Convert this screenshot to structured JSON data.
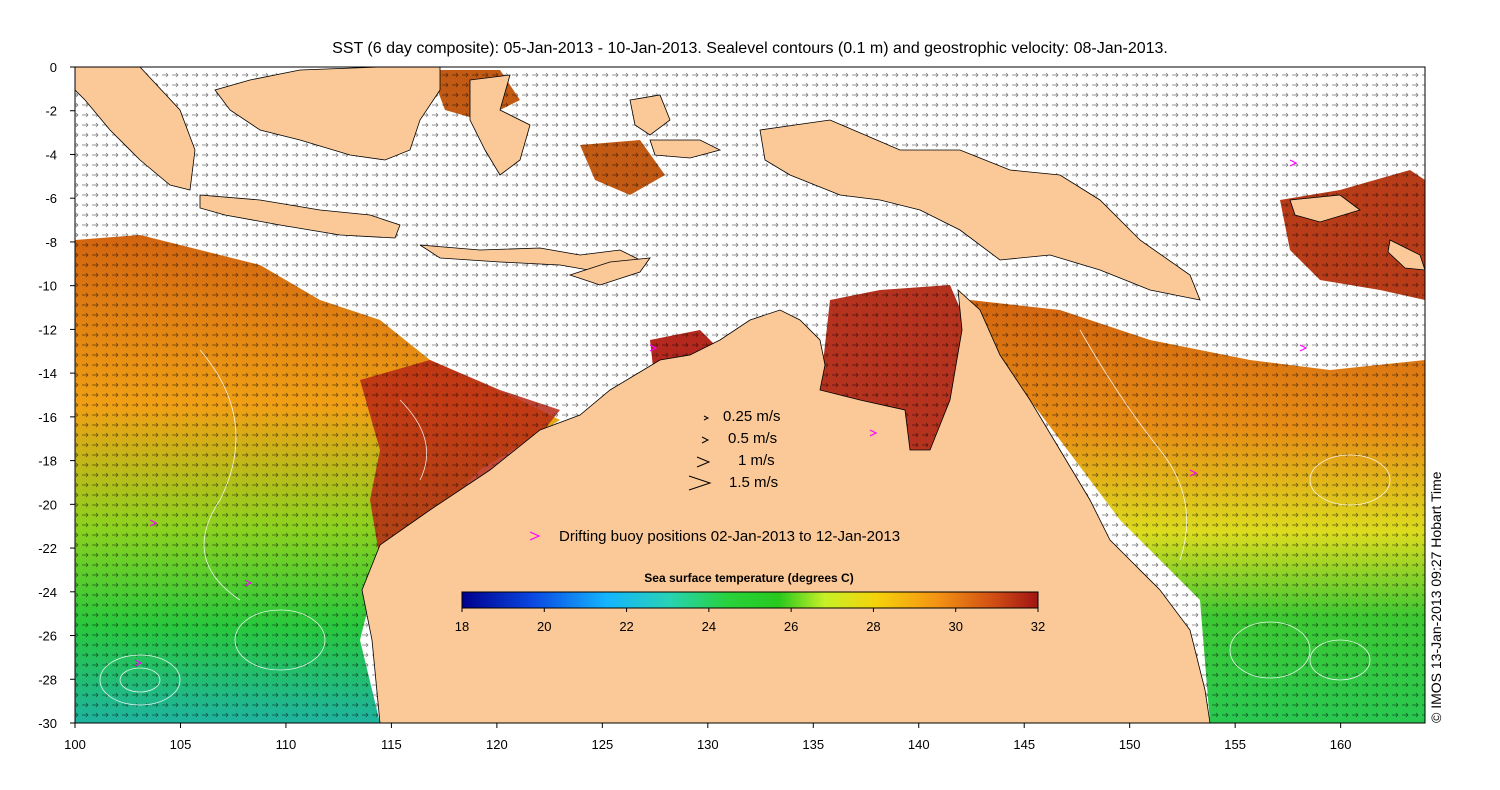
{
  "title": "SST (6 day composite): 05-Jan-2013 - 10-Jan-2013. Sealevel contours (0.1 m) and geostrophic velocity: 08-Jan-2013.",
  "map": {
    "lon_range": [
      100,
      164
    ],
    "lat_range": [
      -30,
      0
    ],
    "x_ticks": [
      "100",
      "105",
      "110",
      "115",
      "120",
      "125",
      "130",
      "135",
      "140",
      "145",
      "150",
      "155",
      "160"
    ],
    "y_ticks": [
      "0",
      "-2",
      "-4",
      "-6",
      "-8",
      "-10",
      "-12",
      "-14",
      "-16",
      "-18",
      "-20",
      "-22",
      "-24",
      "-26",
      "-28",
      "-30"
    ],
    "colors": {
      "land": "#fbc898",
      "cloud": "#ffffff",
      "buoy": "#ff00ff"
    }
  },
  "velocity_legend": [
    "0.25 m/s",
    "0.5 m/s",
    "1 m/s",
    "1.5 m/s"
  ],
  "buoy_legend": "Drifting buoy positions 02-Jan-2013 to 12-Jan-2013",
  "colorbar": {
    "title": "Sea surface temperature (degrees C)",
    "range": [
      18,
      32
    ],
    "ticks": [
      "18",
      "20",
      "22",
      "24",
      "26",
      "28",
      "30",
      "32"
    ]
  },
  "credit": "© IMOS 13-Jan-2013 09:27 Hobart Time"
}
